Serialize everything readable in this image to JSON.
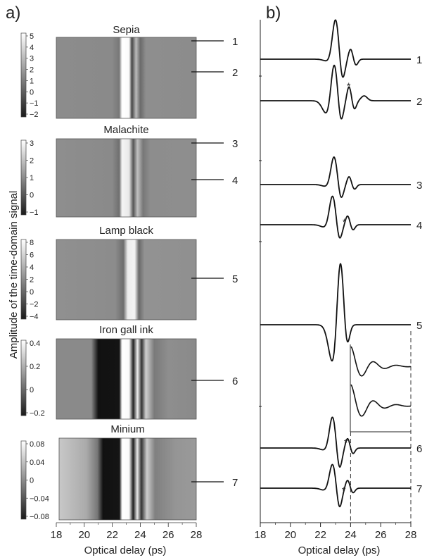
{
  "panel_a": {
    "label": "a)",
    "ylabel": "Amplitude of the time-domain signal",
    "xlabel": "Optical delay (ps)",
    "x_ticks": [
      "18",
      "20",
      "22",
      "24",
      "26",
      "28"
    ],
    "maps": [
      {
        "title": "Sepia",
        "colorbar_ticks": [
          "5",
          "4",
          "3",
          "2",
          "1",
          "0",
          "−1",
          "−2"
        ],
        "lines": [
          "1",
          "2"
        ]
      },
      {
        "title": "Malachite",
        "colorbar_ticks": [
          "3",
          "2",
          "1",
          "0",
          "−1"
        ],
        "lines": [
          "3",
          "4"
        ]
      },
      {
        "title": "Lamp black",
        "colorbar_ticks": [
          "8",
          "6",
          "4",
          "2",
          "0",
          "−2",
          "−4"
        ],
        "lines": [
          "5"
        ]
      },
      {
        "title": "Iron gall ink",
        "colorbar_ticks": [
          "0.4",
          "0.2",
          "0",
          "−0.2"
        ],
        "lines": [
          "6"
        ]
      },
      {
        "title": "Minium",
        "colorbar_ticks": [
          "0.08",
          "0.04",
          "0",
          "−0.04",
          "−0.08"
        ],
        "lines": [
          "7"
        ]
      }
    ]
  },
  "panel_b": {
    "label": "b)",
    "xlabel": "Optical delay (ps)",
    "x_ticks": [
      "18",
      "20",
      "22",
      "24",
      "26",
      "28"
    ],
    "trace_labels": [
      "1",
      "2",
      "3",
      "4",
      "5",
      "6",
      "7"
    ],
    "asterisk": "*"
  },
  "chart_data": [
    {
      "type": "heatmap",
      "panel": "a",
      "x_range": [
        18,
        28
      ],
      "xlabel": "Optical delay (ps)",
      "ylabel": "Amplitude of the time-domain signal",
      "maps": [
        {
          "title": "Sepia",
          "colorbar_range": [
            -2,
            5
          ],
          "peak_delay_ps": 22.9
        },
        {
          "title": "Malachite",
          "colorbar_range": [
            -1,
            3
          ],
          "peak_delay_ps": 22.9
        },
        {
          "title": "Lamp black",
          "colorbar_range": [
            -4,
            8
          ],
          "peak_delay_ps": 23.3
        },
        {
          "title": "Iron gall ink",
          "colorbar_range": [
            -0.2,
            0.4
          ],
          "peak_delay_ps": 22.8
        },
        {
          "title": "Minium",
          "colorbar_range": [
            -0.08,
            0.08
          ],
          "peak_delay_ps": 22.8
        }
      ]
    },
    {
      "type": "line",
      "panel": "b",
      "x_range": [
        18,
        28
      ],
      "xlabel": "Optical delay (ps)",
      "series": [
        {
          "name": "1",
          "peak_delay_ps": 23.0,
          "amplitude": 0.34,
          "baseline": 0.0
        },
        {
          "name": "2",
          "peak_delay_ps": 22.9,
          "amplitude": 0.34,
          "baseline": 0.0
        },
        {
          "name": "3",
          "peak_delay_ps": 22.9,
          "amplitude": 0.24,
          "baseline": 0.0
        },
        {
          "name": "4",
          "peak_delay_ps": 22.8,
          "amplitude": 0.25,
          "baseline": 0.0
        },
        {
          "name": "5",
          "peak_delay_ps": 23.3,
          "amplitude": 0.62,
          "baseline": 0.0
        },
        {
          "name": "6",
          "peak_delay_ps": 22.8,
          "amplitude": 0.27,
          "baseline": 0.0
        },
        {
          "name": "7",
          "peak_delay_ps": 22.8,
          "amplitude": 0.21,
          "baseline": 0.0
        }
      ],
      "inset_range_ps": [
        24,
        28
      ]
    }
  ]
}
